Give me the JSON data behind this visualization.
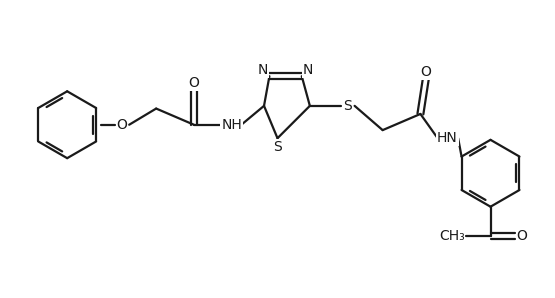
{
  "bg_color": "#ffffff",
  "line_color": "#1a1a1a",
  "line_width": 1.6,
  "font_size": 10,
  "fig_width": 5.55,
  "fig_height": 2.98,
  "dpi": 100,
  "xlim": [
    0,
    10
  ],
  "ylim": [
    -1.0,
    4.5
  ]
}
